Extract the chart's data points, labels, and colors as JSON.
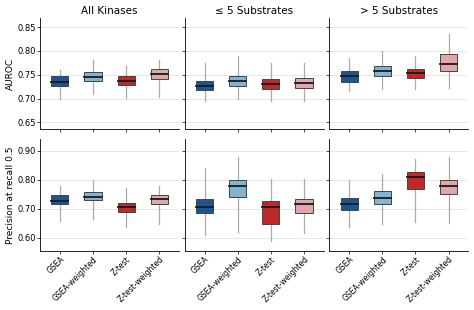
{
  "col_titles": [
    "All Kinases",
    "≤ 5 Substrates",
    "> 5 Substrates"
  ],
  "row_titles": [
    "AUROC",
    "Precision at recall 0.5"
  ],
  "x_labels": [
    "GSEA",
    "GSEA-weighted",
    "Z-test",
    "Z-test-weighted"
  ],
  "colors": [
    "#1b5693",
    "#82b4d2",
    "#c0292a",
    "#e0a8a8"
  ],
  "auroc": {
    "all_kinases": [
      {
        "whislo": 0.7,
        "q1": 0.727,
        "med": 0.735,
        "q3": 0.747,
        "whishi": 0.76
      },
      {
        "whislo": 0.71,
        "q1": 0.737,
        "med": 0.746,
        "q3": 0.756,
        "whishi": 0.782
      },
      {
        "whislo": 0.702,
        "q1": 0.728,
        "med": 0.737,
        "q3": 0.747,
        "whishi": 0.768
      },
      {
        "whislo": 0.704,
        "q1": 0.742,
        "med": 0.752,
        "q3": 0.762,
        "whishi": 0.782
      }
    ],
    "le5": [
      {
        "whislo": 0.695,
        "q1": 0.718,
        "med": 0.726,
        "q3": 0.736,
        "whishi": 0.775
      },
      {
        "whislo": 0.698,
        "q1": 0.726,
        "med": 0.736,
        "q3": 0.747,
        "whishi": 0.79
      },
      {
        "whislo": 0.695,
        "q1": 0.72,
        "med": 0.73,
        "q3": 0.74,
        "whishi": 0.775
      },
      {
        "whislo": 0.695,
        "q1": 0.722,
        "med": 0.733,
        "q3": 0.743,
        "whishi": 0.775
      }
    ],
    "gt5": [
      {
        "whislo": 0.715,
        "q1": 0.735,
        "med": 0.747,
        "q3": 0.758,
        "whishi": 0.786
      },
      {
        "whislo": 0.72,
        "q1": 0.747,
        "med": 0.758,
        "q3": 0.768,
        "whishi": 0.8
      },
      {
        "whislo": 0.72,
        "q1": 0.743,
        "med": 0.753,
        "q3": 0.763,
        "whishi": 0.79
      },
      {
        "whislo": 0.722,
        "q1": 0.758,
        "med": 0.772,
        "q3": 0.793,
        "whishi": 0.835
      }
    ]
  },
  "precision": {
    "all_kinases": [
      {
        "whislo": 0.658,
        "q1": 0.715,
        "med": 0.726,
        "q3": 0.748,
        "whishi": 0.778
      },
      {
        "whislo": 0.663,
        "q1": 0.73,
        "med": 0.742,
        "q3": 0.758,
        "whishi": 0.8
      },
      {
        "whislo": 0.638,
        "q1": 0.688,
        "med": 0.706,
        "q3": 0.72,
        "whishi": 0.77
      },
      {
        "whislo": 0.648,
        "q1": 0.715,
        "med": 0.733,
        "q3": 0.748,
        "whishi": 0.778
      }
    ],
    "le5": [
      {
        "whislo": 0.608,
        "q1": 0.685,
        "med": 0.706,
        "q3": 0.732,
        "whishi": 0.84
      },
      {
        "whislo": 0.62,
        "q1": 0.74,
        "med": 0.778,
        "q3": 0.8,
        "whishi": 0.88
      },
      {
        "whislo": 0.588,
        "q1": 0.648,
        "med": 0.706,
        "q3": 0.728,
        "whishi": 0.802
      },
      {
        "whislo": 0.615,
        "q1": 0.685,
        "med": 0.715,
        "q3": 0.733,
        "whishi": 0.802
      }
    ],
    "gt5": [
      {
        "whislo": 0.638,
        "q1": 0.695,
        "med": 0.718,
        "q3": 0.738,
        "whishi": 0.8
      },
      {
        "whislo": 0.648,
        "q1": 0.718,
        "med": 0.738,
        "q3": 0.76,
        "whishi": 0.82
      },
      {
        "whislo": 0.655,
        "q1": 0.768,
        "med": 0.808,
        "q3": 0.826,
        "whishi": 0.872
      },
      {
        "whislo": 0.65,
        "q1": 0.75,
        "med": 0.778,
        "q3": 0.798,
        "whishi": 0.878
      }
    ]
  },
  "auroc_ylim": [
    0.635,
    0.87
  ],
  "auroc_yticks": [
    0.65,
    0.7,
    0.75,
    0.8,
    0.85
  ],
  "precision_ylim": [
    0.555,
    0.94
  ],
  "precision_yticks": [
    0.6,
    0.7,
    0.8,
    0.9
  ],
  "background_color": "#ffffff"
}
